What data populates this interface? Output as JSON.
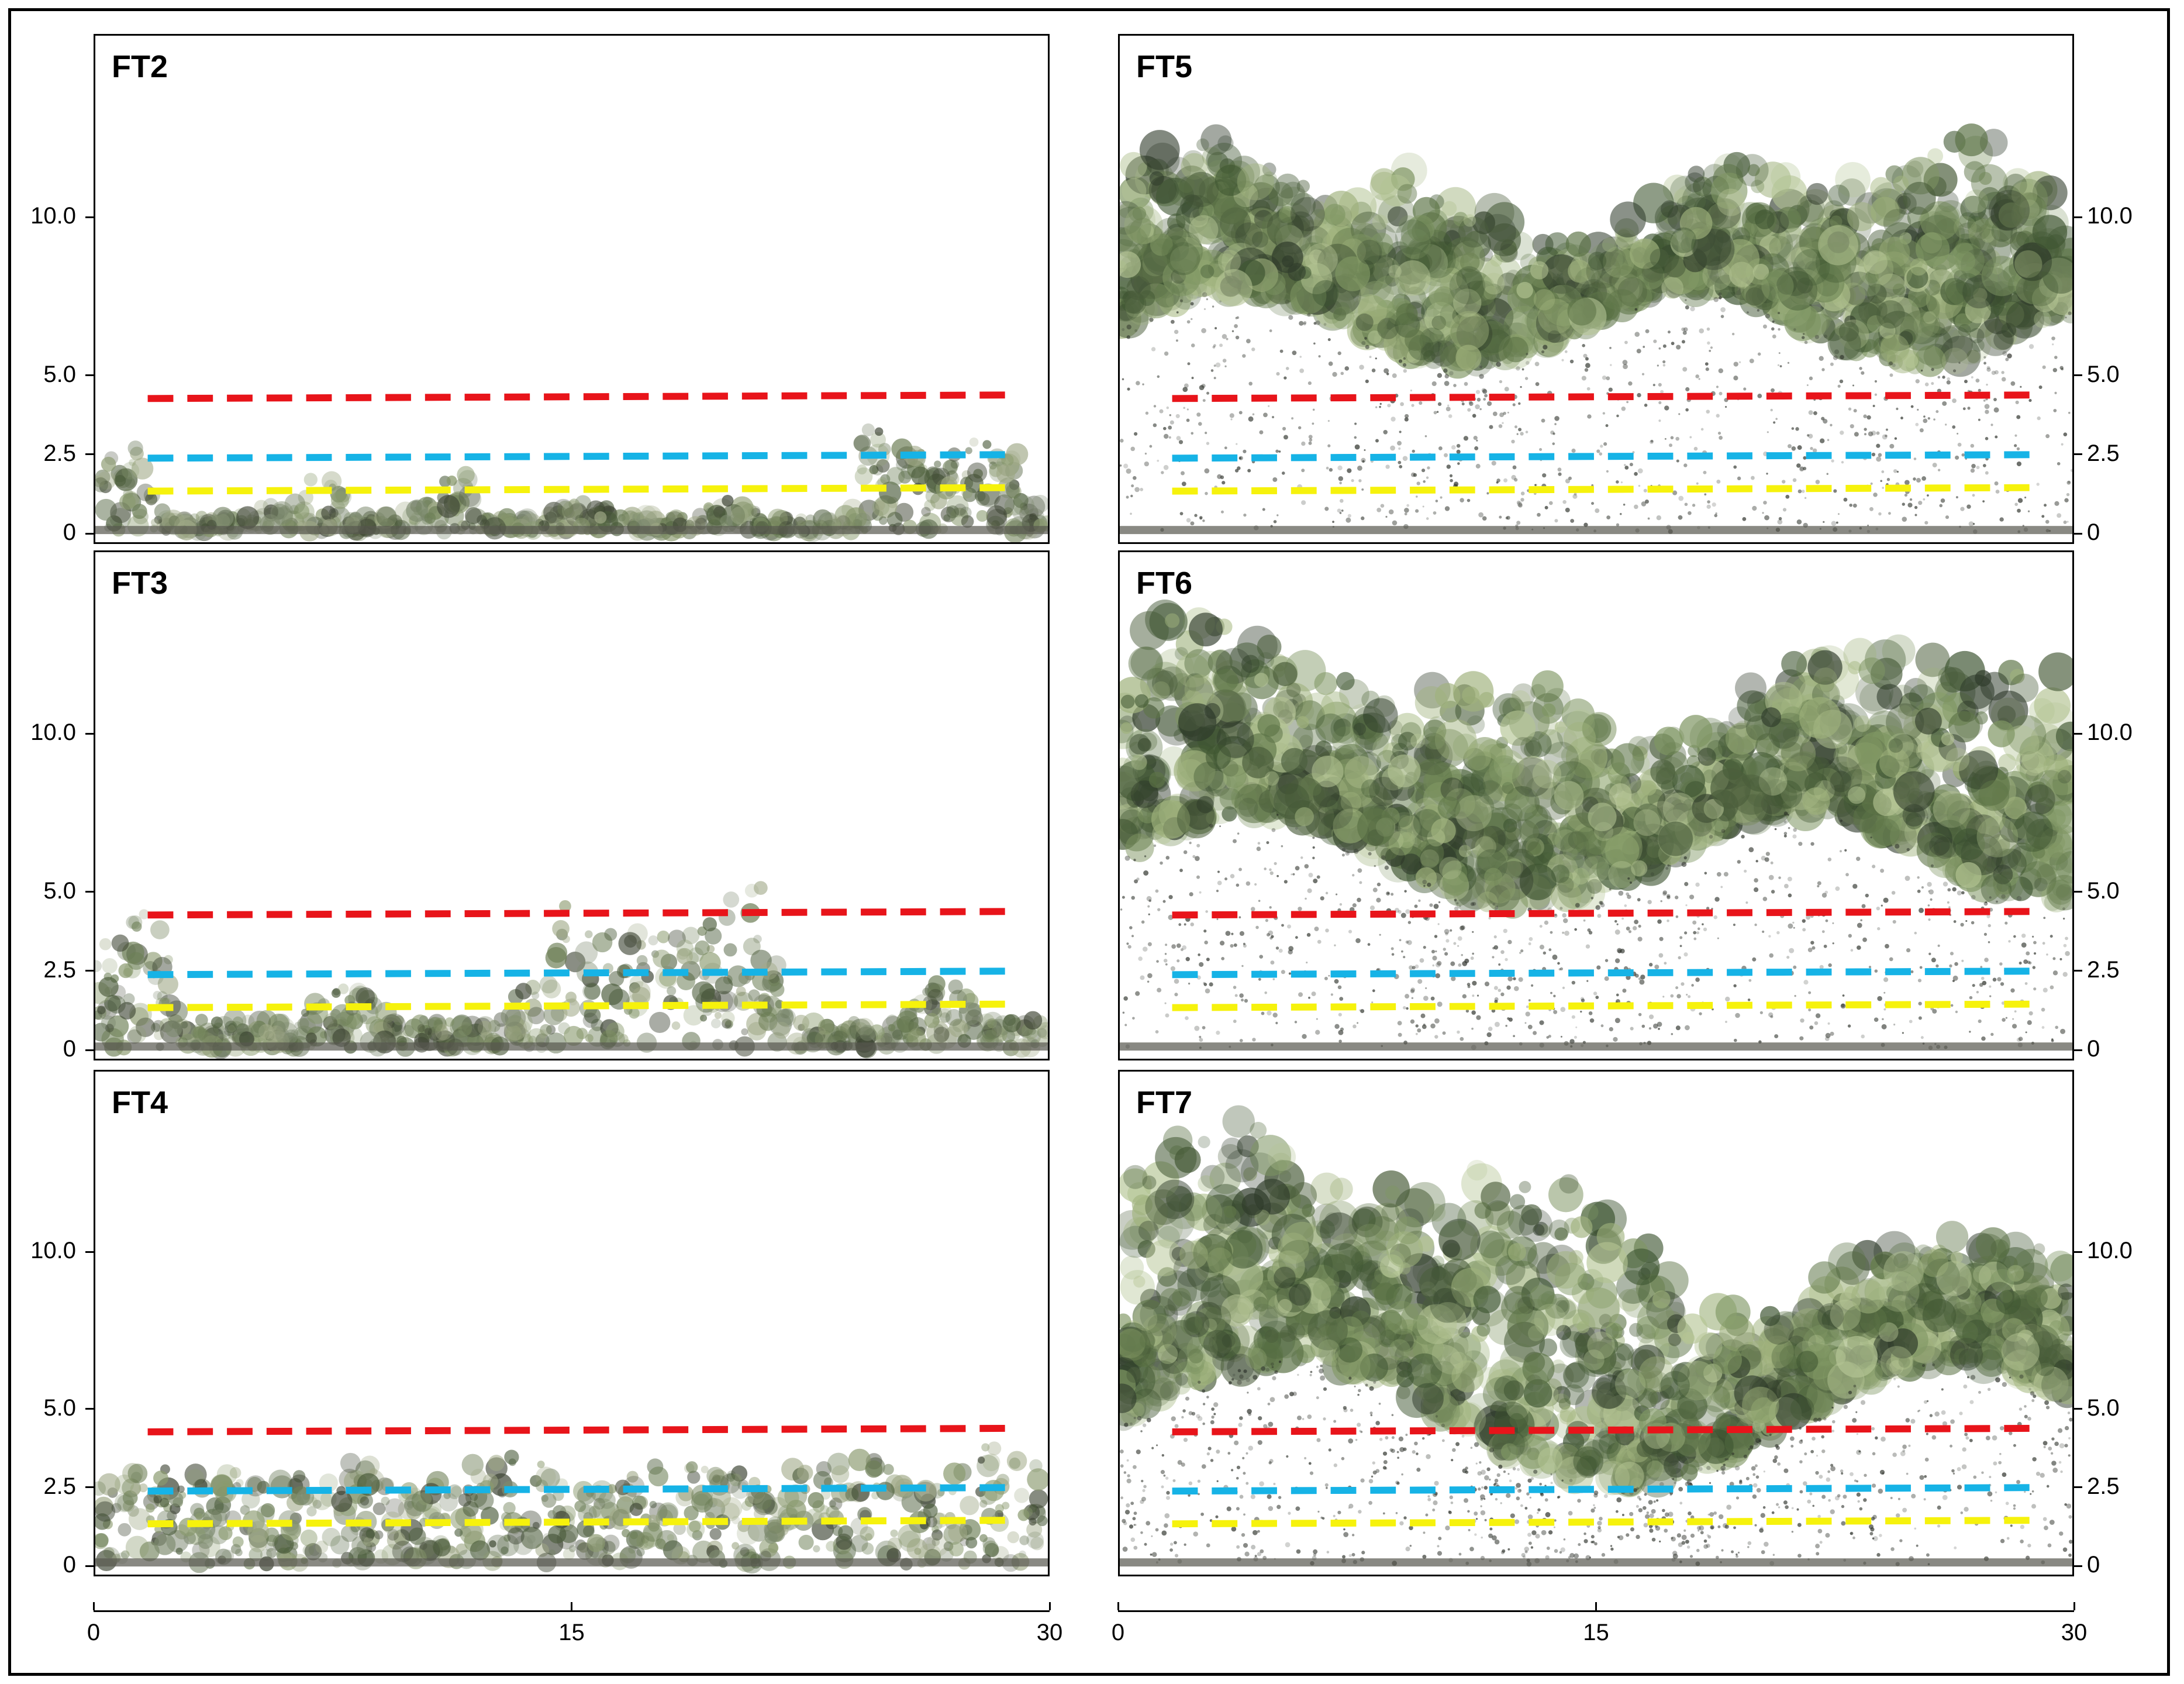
{
  "panels": [
    {
      "label": "FT2",
      "canopy": "shrubs-low"
    },
    {
      "label": "FT3",
      "canopy": "shrubs-mid"
    },
    {
      "label": "FT4",
      "canopy": "shrubs-dense"
    },
    {
      "label": "FT5",
      "canopy": "forest-closed"
    },
    {
      "label": "FT6",
      "canopy": "forest-mixed"
    },
    {
      "label": "FT7",
      "canopy": "forest-tall"
    }
  ],
  "y_ticks": [
    "10.0",
    "5.0",
    "2.5",
    "0"
  ],
  "y_tick_values": [
    10.0,
    5.0,
    2.5,
    0
  ],
  "x_ticks": [
    "0",
    "15",
    "30"
  ],
  "x_tick_values": [
    0,
    15,
    30
  ],
  "reference_lines": [
    {
      "height": 4.3,
      "color": "#e8141a"
    },
    {
      "height": 2.4,
      "color": "#16b3e6"
    },
    {
      "height": 1.35,
      "color": "#f6f20c"
    }
  ],
  "colors": {
    "foliage_light": "#9fb27c",
    "foliage_dark": "#3f5632",
    "ground": "#57574f"
  }
}
